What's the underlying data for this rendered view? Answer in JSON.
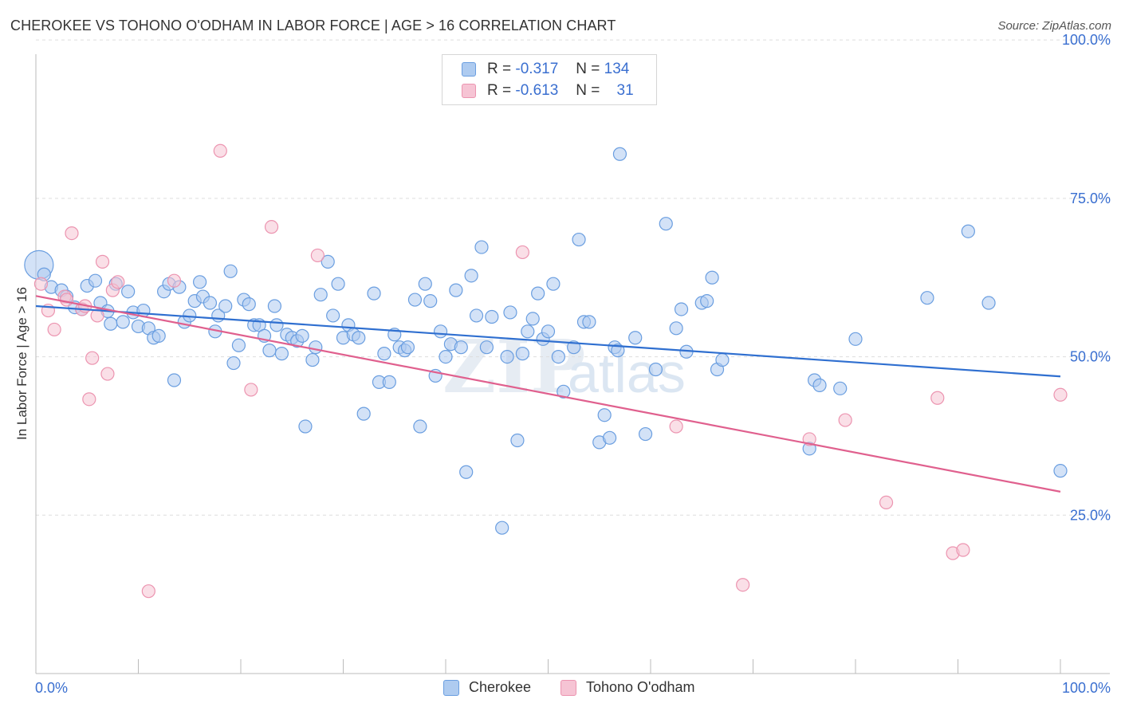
{
  "header": {
    "title": "CHEROKEE VS TOHONO O'ODHAM IN LABOR FORCE | AGE > 16 CORRELATION CHART",
    "source": "Source: ZipAtlas.com"
  },
  "legend_top": {
    "rows": [
      {
        "r_label": "R =",
        "r_value": "-0.317",
        "n_label": "N =",
        "n_value": "134"
      },
      {
        "r_label": "R =",
        "r_value": "-0.613",
        "n_label": "N =",
        "n_value": "31"
      }
    ]
  },
  "legend_bottom": {
    "items": [
      "Cherokee",
      "Tohono O'odham"
    ]
  },
  "colors": {
    "cherokee_fill": "#aecbf0",
    "cherokee_stroke": "#6a9ee0",
    "cherokee_line": "#2f6fd0",
    "tohono_fill": "#f6c4d4",
    "tohono_stroke": "#ec94b0",
    "tohono_line": "#e0608e",
    "accent_text": "#3a6fd0",
    "grid": "#dddddd"
  },
  "chart_data": {
    "type": "scatter",
    "title": "CHEROKEE VS TOHONO O'ODHAM IN LABOR FORCE | AGE > 16 CORRELATION CHART",
    "xlabel": "",
    "ylabel": "In Labor Force | Age > 16",
    "xlim": [
      0,
      100
    ],
    "ylim": [
      0,
      100
    ],
    "x_tick_labels": [
      "0.0%",
      "100.0%"
    ],
    "y_tick_labels": [
      "25.0%",
      "50.0%",
      "75.0%",
      "100.0%"
    ],
    "y_ticks": [
      25,
      50,
      75,
      100
    ],
    "grid": true,
    "legend_position": "bottom",
    "series": [
      {
        "name": "Cherokee",
        "R": -0.317,
        "N": 134,
        "trend": {
          "x": [
            0,
            100
          ],
          "y": [
            58.0,
            46.9
          ]
        },
        "points": [
          [
            0.3,
            64.5
          ],
          [
            0.8,
            63.0
          ],
          [
            1.5,
            61.0
          ],
          [
            2.5,
            60.5
          ],
          [
            3.0,
            59.5
          ],
          [
            3.8,
            57.8
          ],
          [
            4.5,
            57.5
          ],
          [
            5.0,
            61.2
          ],
          [
            5.8,
            62.0
          ],
          [
            6.3,
            58.5
          ],
          [
            7.0,
            57.2
          ],
          [
            7.3,
            55.2
          ],
          [
            7.8,
            61.5
          ],
          [
            8.5,
            55.5
          ],
          [
            9.0,
            60.3
          ],
          [
            9.5,
            57.0
          ],
          [
            10.0,
            54.8
          ],
          [
            10.5,
            57.3
          ],
          [
            11.0,
            54.5
          ],
          [
            11.5,
            53.0
          ],
          [
            12.0,
            53.3
          ],
          [
            12.5,
            60.3
          ],
          [
            13.0,
            61.5
          ],
          [
            13.5,
            46.3
          ],
          [
            14.0,
            61.0
          ],
          [
            14.5,
            55.5
          ],
          [
            15.0,
            56.5
          ],
          [
            15.5,
            58.8
          ],
          [
            16.0,
            61.8
          ],
          [
            16.3,
            59.5
          ],
          [
            17.0,
            58.5
          ],
          [
            17.5,
            54.0
          ],
          [
            17.8,
            56.5
          ],
          [
            18.5,
            58.0
          ],
          [
            19.0,
            63.5
          ],
          [
            19.3,
            49.0
          ],
          [
            19.8,
            51.8
          ],
          [
            20.3,
            59.0
          ],
          [
            20.8,
            58.3
          ],
          [
            21.3,
            55.0
          ],
          [
            21.8,
            55.0
          ],
          [
            22.3,
            53.3
          ],
          [
            22.8,
            51.0
          ],
          [
            23.3,
            58.0
          ],
          [
            23.5,
            55.0
          ],
          [
            24.0,
            50.5
          ],
          [
            24.5,
            53.5
          ],
          [
            25.0,
            53.0
          ],
          [
            25.5,
            52.5
          ],
          [
            26.0,
            53.3
          ],
          [
            26.3,
            39.0
          ],
          [
            27.0,
            49.5
          ],
          [
            27.3,
            51.5
          ],
          [
            27.8,
            59.8
          ],
          [
            28.5,
            65.0
          ],
          [
            29.0,
            56.5
          ],
          [
            29.5,
            61.5
          ],
          [
            30.0,
            53.0
          ],
          [
            30.5,
            55.0
          ],
          [
            31.0,
            53.5
          ],
          [
            31.5,
            53.0
          ],
          [
            32.0,
            41.0
          ],
          [
            33.0,
            60.0
          ],
          [
            33.5,
            46.0
          ],
          [
            34.0,
            50.5
          ],
          [
            34.5,
            46.0
          ],
          [
            35.0,
            53.5
          ],
          [
            35.5,
            51.5
          ],
          [
            36.0,
            51.0
          ],
          [
            36.3,
            51.5
          ],
          [
            37.0,
            59.0
          ],
          [
            37.5,
            39.0
          ],
          [
            38.0,
            61.5
          ],
          [
            38.5,
            58.8
          ],
          [
            39.0,
            47.0
          ],
          [
            39.5,
            54.0
          ],
          [
            40.0,
            50.0
          ],
          [
            40.5,
            52.0
          ],
          [
            41.0,
            60.5
          ],
          [
            41.5,
            51.5
          ],
          [
            42.0,
            31.8
          ],
          [
            42.5,
            62.8
          ],
          [
            43.0,
            56.5
          ],
          [
            43.5,
            67.3
          ],
          [
            44.0,
            51.5
          ],
          [
            44.5,
            56.3
          ],
          [
            45.5,
            23.0
          ],
          [
            46.0,
            50.0
          ],
          [
            46.3,
            57.0
          ],
          [
            47.0,
            36.8
          ],
          [
            47.5,
            50.5
          ],
          [
            48.0,
            54.0
          ],
          [
            48.5,
            56.0
          ],
          [
            49.0,
            60.0
          ],
          [
            49.5,
            52.8
          ],
          [
            50.0,
            54.0
          ],
          [
            50.5,
            61.5
          ],
          [
            51.0,
            50.0
          ],
          [
            51.5,
            44.5
          ],
          [
            52.5,
            51.5
          ],
          [
            53.0,
            68.5
          ],
          [
            53.5,
            55.5
          ],
          [
            54.0,
            55.5
          ],
          [
            55.0,
            36.5
          ],
          [
            55.5,
            40.8
          ],
          [
            56.0,
            37.2
          ],
          [
            56.5,
            51.5
          ],
          [
            56.8,
            51.0
          ],
          [
            57.0,
            82.0
          ],
          [
            58.5,
            53.0
          ],
          [
            59.5,
            37.8
          ],
          [
            60.5,
            48.0
          ],
          [
            61.5,
            71.0
          ],
          [
            62.5,
            54.5
          ],
          [
            63.0,
            57.5
          ],
          [
            63.5,
            50.8
          ],
          [
            65.0,
            58.5
          ],
          [
            65.5,
            58.8
          ],
          [
            66.0,
            62.5
          ],
          [
            66.5,
            48.0
          ],
          [
            67.0,
            49.5
          ],
          [
            75.5,
            35.5
          ],
          [
            76.0,
            46.3
          ],
          [
            76.5,
            45.5
          ],
          [
            78.5,
            45.0
          ],
          [
            80.0,
            52.8
          ],
          [
            87.0,
            59.3
          ],
          [
            91.0,
            69.8
          ],
          [
            93.0,
            58.5
          ],
          [
            100.0,
            32.0
          ]
        ]
      },
      {
        "name": "Tohono O'odham",
        "R": -0.613,
        "N": 31,
        "trend": {
          "x": [
            0,
            100
          ],
          "y": [
            59.6,
            28.7
          ]
        },
        "points": [
          [
            0.5,
            61.5
          ],
          [
            1.2,
            57.3
          ],
          [
            1.8,
            54.3
          ],
          [
            2.8,
            59.5
          ],
          [
            3.5,
            69.5
          ],
          [
            4.5,
            57.5
          ],
          [
            5.2,
            43.3
          ],
          [
            5.5,
            49.8
          ],
          [
            6.0,
            56.5
          ],
          [
            6.5,
            65.0
          ],
          [
            7.0,
            47.3
          ],
          [
            7.5,
            60.5
          ],
          [
            8.0,
            61.8
          ],
          [
            11.0,
            13.0
          ],
          [
            13.5,
            62.0
          ],
          [
            18.0,
            82.5
          ],
          [
            21.0,
            44.8
          ],
          [
            23.0,
            70.5
          ],
          [
            27.5,
            66.0
          ],
          [
            47.5,
            66.5
          ],
          [
            62.5,
            39.0
          ],
          [
            69.0,
            14.0
          ],
          [
            75.5,
            37.0
          ],
          [
            79.0,
            40.0
          ],
          [
            83.0,
            27.0
          ],
          [
            88.0,
            43.5
          ],
          [
            89.5,
            19.0
          ],
          [
            90.5,
            19.5
          ],
          [
            100.0,
            44.0
          ],
          [
            3.0,
            59.0
          ],
          [
            4.8,
            58.0
          ]
        ]
      }
    ]
  }
}
